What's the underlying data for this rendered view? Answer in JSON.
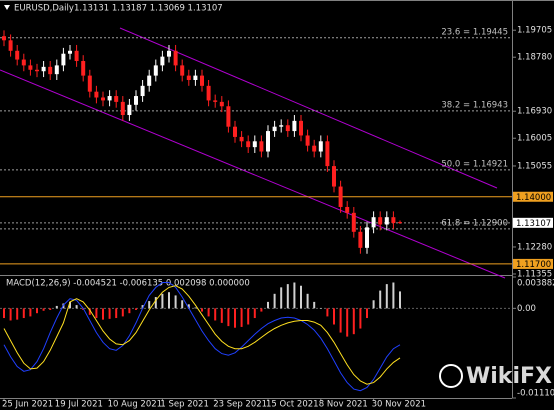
{
  "chart_data": [
    {
      "type": "candlestick",
      "title": "EURUSD,Daily",
      "ohlc_label": "1.13131 1.13187 1.13069 1.13107",
      "up_color": "#ffffff",
      "down_color": "#ff2020",
      "categories": [
        "25 Jun 2021",
        null,
        null,
        null,
        null,
        null,
        null,
        null,
        "19 Jul 2021",
        null,
        null,
        null,
        null,
        null,
        null,
        null,
        "10 Aug 2021",
        null,
        null,
        null,
        null,
        null,
        null,
        null,
        "1 Sep 2021",
        null,
        null,
        null,
        null,
        null,
        null,
        null,
        "23 Sep 2021",
        null,
        null,
        null,
        null,
        null,
        null,
        null,
        "15 Oct 2021",
        null,
        null,
        null,
        null,
        null,
        null,
        null,
        "8 Nov 2021",
        null,
        null,
        null,
        null,
        null,
        null,
        null,
        "30 Nov 2021",
        null,
        null,
        null,
        null
      ],
      "open": [
        1.195,
        1.1936,
        1.19,
        1.187,
        1.185,
        1.1835,
        1.183,
        1.1845,
        1.182,
        1.185,
        1.189,
        1.19,
        1.1865,
        1.1815,
        1.176,
        1.174,
        1.173,
        1.1745,
        1.1725,
        1.168,
        1.1715,
        1.1745,
        1.178,
        1.1815,
        1.185,
        1.188,
        1.19,
        1.185,
        1.1815,
        1.18,
        1.1815,
        1.178,
        1.173,
        1.1725,
        1.171,
        1.164,
        1.1605,
        1.159,
        1.157,
        1.159,
        1.1555,
        1.1625,
        1.164,
        1.1645,
        1.1625,
        1.166,
        1.161,
        1.1575,
        1.1555,
        1.159,
        1.1505,
        1.1435,
        1.1365,
        1.1345,
        1.128,
        1.1225,
        1.1295,
        1.133,
        1.1305,
        1.133,
        1.13131
      ],
      "high": [
        1.197,
        1.1956,
        1.192,
        1.189,
        1.187,
        1.1855,
        1.1865,
        1.1865,
        1.187,
        1.191,
        1.192,
        1.192,
        1.1885,
        1.1835,
        1.178,
        1.176,
        1.1765,
        1.1765,
        1.1745,
        1.1735,
        1.1765,
        1.18,
        1.1835,
        1.187,
        1.19,
        1.192,
        1.192,
        1.187,
        1.1835,
        1.1835,
        1.1835,
        1.18,
        1.175,
        1.1745,
        1.173,
        1.166,
        1.1625,
        1.161,
        1.161,
        1.161,
        1.1645,
        1.166,
        1.1665,
        1.1665,
        1.168,
        1.168,
        1.163,
        1.1595,
        1.161,
        1.161,
        1.1525,
        1.1455,
        1.1385,
        1.1365,
        1.13,
        1.1315,
        1.135,
        1.135,
        1.135,
        1.135,
        1.13187
      ],
      "low": [
        1.1916,
        1.188,
        1.185,
        1.183,
        1.1815,
        1.181,
        1.181,
        1.18,
        1.18,
        1.183,
        1.187,
        1.1845,
        1.1795,
        1.174,
        1.172,
        1.171,
        1.171,
        1.1705,
        1.166,
        1.166,
        1.1695,
        1.1725,
        1.176,
        1.1795,
        1.183,
        1.186,
        1.183,
        1.1795,
        1.178,
        1.178,
        1.176,
        1.171,
        1.1705,
        1.169,
        1.162,
        1.1585,
        1.157,
        1.155,
        1.155,
        1.1535,
        1.1535,
        1.1605,
        1.162,
        1.1605,
        1.1605,
        1.159,
        1.1555,
        1.1535,
        1.1535,
        1.1485,
        1.1415,
        1.1345,
        1.1325,
        1.126,
        1.1205,
        1.1205,
        1.1275,
        1.1285,
        1.1285,
        1.129,
        1.13069
      ],
      "close": [
        1.1936,
        1.19,
        1.187,
        1.185,
        1.1835,
        1.183,
        1.1845,
        1.182,
        1.185,
        1.189,
        1.19,
        1.1865,
        1.1815,
        1.176,
        1.174,
        1.173,
        1.1745,
        1.1725,
        1.168,
        1.1715,
        1.1745,
        1.178,
        1.1815,
        1.185,
        1.188,
        1.19,
        1.185,
        1.1815,
        1.18,
        1.1815,
        1.178,
        1.173,
        1.1725,
        1.171,
        1.164,
        1.1605,
        1.159,
        1.157,
        1.159,
        1.1555,
        1.1625,
        1.164,
        1.1645,
        1.1625,
        1.166,
        1.161,
        1.1575,
        1.1555,
        1.159,
        1.1505,
        1.1435,
        1.1365,
        1.1345,
        1.128,
        1.1225,
        1.1295,
        1.133,
        1.1305,
        1.133,
        1.131,
        1.13107
      ],
      "ylim": [
        1.1132,
        1.2074
      ],
      "yticks": [
        1.19705,
        {
          "value": 1.1878,
          "label": "1.18780"
        },
        {
          "value": 1.1693,
          "label": "1.16930"
        },
        1.16005,
        1.15055,
        {
          "value": 1.1228,
          "label": "1.12280"
        },
        1.11355
      ],
      "fib_levels": [
        {
          "label": "23.6 = 1.19445",
          "value": 1.19445
        },
        {
          "label": "38.2 = 1.16943",
          "value": 1.16943
        },
        {
          "label": "50.0 = 1.14921",
          "value": 1.14921
        },
        {
          "label": "61.8 = 1.12900",
          "value": 1.129
        }
      ],
      "levels": [
        {
          "label": "1.14000",
          "value": 1.14,
          "color": "#f0a020"
        },
        {
          "label": "1.13107",
          "value": 1.13107,
          "color": "#ffffff"
        },
        {
          "label": "1.11700",
          "value": 1.117,
          "color": "#f0a020"
        }
      ],
      "watermark": "WikiFX"
    },
    {
      "type": "macd",
      "title": "MACD(12,26,9) -0.004521 -0.006135 0.002098 0.000000",
      "ylim": [
        -0.011104,
        0.003882
      ],
      "yticks": [
        0.003882,
        {
          "value": 0,
          "label": "0.00"
        },
        -0.011104
      ],
      "histogram": {
        "up_color": "#d0d0d0",
        "down_color": "#ff2020",
        "values": [
          -0.0012,
          -0.0015,
          -0.0014,
          -0.0012,
          -0.001,
          -0.0006,
          -0.0003,
          -0.0002,
          0.0003,
          0.0006,
          0.0008,
          0.0004,
          -0.0002,
          -0.0008,
          -0.0012,
          -0.0014,
          -0.0013,
          -0.0012,
          -0.001,
          -0.0006,
          -0.0002,
          0.0004,
          0.0009,
          0.0014,
          0.0018,
          0.002,
          0.0016,
          0.001,
          0.0005,
          0.0001,
          -0.0004,
          -0.001,
          -0.0015,
          -0.0018,
          -0.0022,
          -0.0024,
          -0.0023,
          -0.002,
          -0.0012,
          -0.0004,
          0.0008,
          0.0018,
          0.0026,
          0.003,
          0.0032,
          0.0028,
          0.0018,
          0.0008,
          0.0,
          -0.001,
          -0.002,
          -0.003,
          -0.0035,
          -0.0032,
          -0.0025,
          -0.0012,
          0.001,
          0.0022,
          0.003,
          0.0032,
          0.002098
        ]
      },
      "series": [
        {
          "color": "#2040ff",
          "values": [
            -0.0045,
            -0.006,
            -0.0072,
            -0.0078,
            -0.0076,
            -0.0066,
            -0.005,
            -0.003,
            -0.0012,
            0.0004,
            0.0012,
            0.001,
            0.0,
            -0.0015,
            -0.003,
            -0.0042,
            -0.005,
            -0.0052,
            -0.0046,
            -0.0034,
            -0.0018,
            0.0,
            0.0016,
            0.0026,
            0.0032,
            0.0032,
            0.0026,
            0.0014,
            0.0,
            -0.0014,
            -0.0028,
            -0.004,
            -0.005,
            -0.0056,
            -0.0058,
            -0.0055,
            -0.0048,
            -0.004,
            -0.0032,
            -0.0025,
            -0.0019,
            -0.0015,
            -0.0012,
            -0.0011,
            -0.0012,
            -0.0015,
            -0.002,
            -0.0027,
            -0.0037,
            -0.005,
            -0.0065,
            -0.008,
            -0.0092,
            -0.01,
            -0.0102,
            -0.0098,
            -0.0088,
            -0.0074,
            -0.006,
            -0.005,
            -0.004521
          ]
        },
        {
          "color": "#ffe020",
          "values": [
            -0.0025,
            -0.004,
            -0.0055,
            -0.0068,
            -0.0075,
            -0.0074,
            -0.0066,
            -0.0052,
            -0.0035,
            -0.0018,
            0.0008,
            0.0012,
            0.0008,
            -0.0002,
            -0.0015,
            -0.0028,
            -0.0038,
            -0.0044,
            -0.0045,
            -0.004,
            -0.003,
            -0.0016,
            -0.0002,
            0.001,
            0.002,
            0.0026,
            0.0028,
            0.0024,
            0.0015,
            0.0004,
            -0.0008,
            -0.002,
            -0.0032,
            -0.0041,
            -0.0047,
            -0.005,
            -0.005,
            -0.0047,
            -0.0042,
            -0.0036,
            -0.003,
            -0.0025,
            -0.0021,
            -0.0018,
            -0.0016,
            -0.0015,
            -0.0015,
            -0.0017,
            -0.0021,
            -0.003,
            -0.0042,
            -0.0056,
            -0.007,
            -0.0082,
            -0.009,
            -0.0094,
            -0.0092,
            -0.0085,
            -0.0075,
            -0.0067,
            -0.006135
          ]
        }
      ]
    }
  ]
}
